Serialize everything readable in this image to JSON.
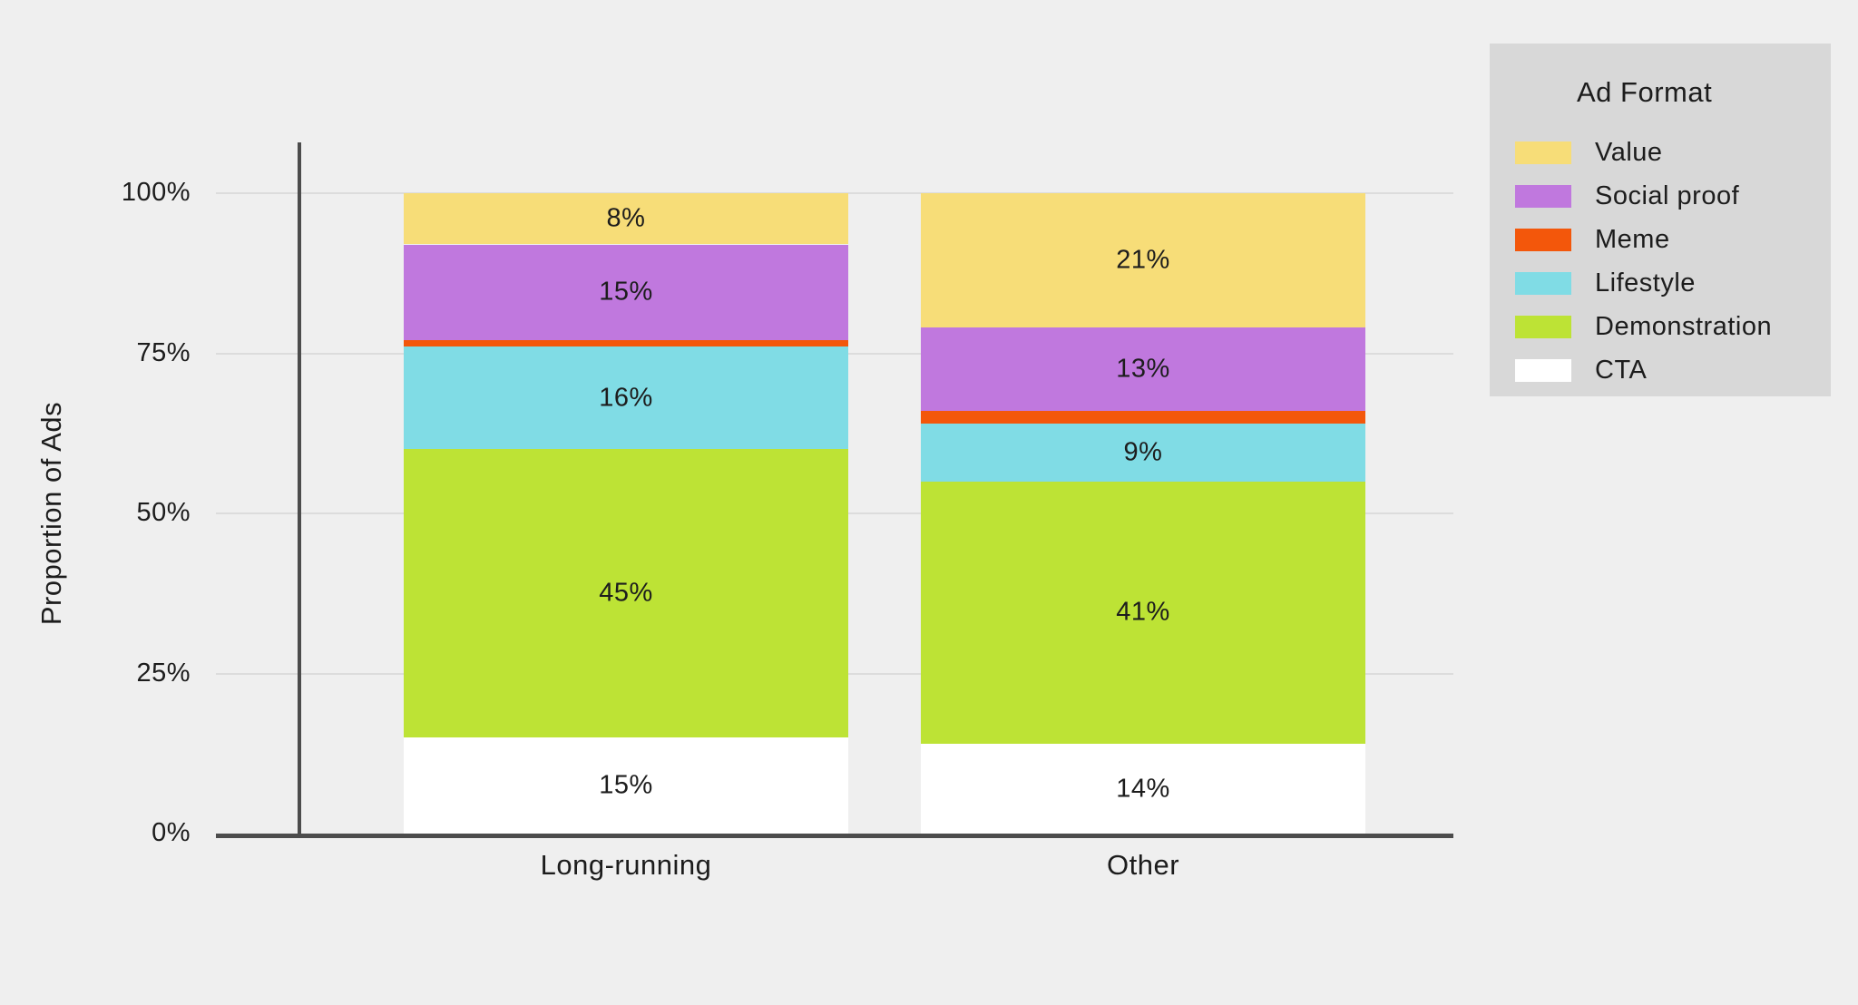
{
  "chart_data": {
    "type": "bar",
    "stacked": true,
    "orientation": "vertical",
    "ylabel": "Proportion of Ads",
    "xlabel": "",
    "legend_title": "Ad Format",
    "legend_position": "right",
    "grid": true,
    "ylim": [
      0,
      100
    ],
    "y_ticks": [
      "0%",
      "25%",
      "50%",
      "75%",
      "100%"
    ],
    "y_tick_values": [
      0,
      25,
      50,
      75,
      100
    ],
    "categories": [
      "Long-running",
      "Other"
    ],
    "series": [
      {
        "name": "CTA",
        "color": "#ffffff",
        "values": [
          15,
          14
        ],
        "labels": [
          "15%",
          "14%"
        ]
      },
      {
        "name": "Demonstration",
        "color": "#bde335",
        "values": [
          45,
          41
        ],
        "labels": [
          "45%",
          "41%"
        ]
      },
      {
        "name": "Lifestyle",
        "color": "#80dce5",
        "values": [
          16,
          9
        ],
        "labels": [
          "16%",
          "9%"
        ]
      },
      {
        "name": "Meme",
        "color": "#f3570b",
        "values": [
          1,
          2
        ],
        "labels": [
          "",
          ""
        ]
      },
      {
        "name": "Social proof",
        "color": "#c078de",
        "values": [
          15,
          13
        ],
        "labels": [
          "15%",
          "13%"
        ]
      },
      {
        "name": "Value",
        "color": "#f7dd78",
        "values": [
          8,
          21
        ],
        "labels": [
          "8%",
          "21%"
        ]
      }
    ],
    "legend_order": [
      "Value",
      "Social proof",
      "Meme",
      "Lifestyle",
      "Demonstration",
      "CTA"
    ]
  },
  "palette": {
    "background": "#efefef",
    "legend_background": "#d8d8d8",
    "axis_line": "#4c4c4c",
    "gridline": "#dcdcdc",
    "text": "#1c1c1c"
  }
}
